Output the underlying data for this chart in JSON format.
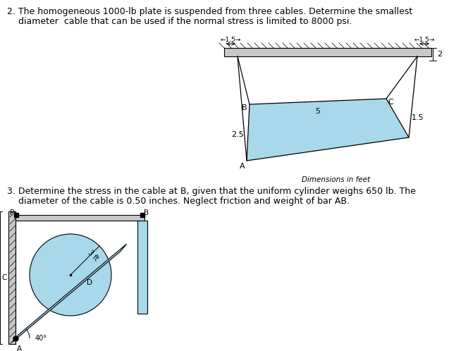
{
  "bg_color": "#ffffff",
  "problem2_line1": "2. The homogeneous 1000-lb plate is suspended from three cables. Determine the smallest",
  "problem2_line2": "    diameter  cable that can be used if the normal stress is limited to 8000 psi.",
  "problem3_line1": "3. Determine the stress in the cable at B, given that the uniform cylinder weighs 650 lb. The",
  "problem3_line2": "    diameter of the cable is 0.50 inches. Neglect friction and weight of bar AB.",
  "dim_label": "Dimensions in feet",
  "plate_fill": "#a8d8ea",
  "ceiling_fill": "#c8c8c8",
  "bar_fill": "#a8d8ea",
  "circle_fill": "#a8d8ea",
  "wall_fill": "#c8c8c8",
  "text_fs": 9.0,
  "label_fs": 8.0,
  "small_fs": 7.5
}
